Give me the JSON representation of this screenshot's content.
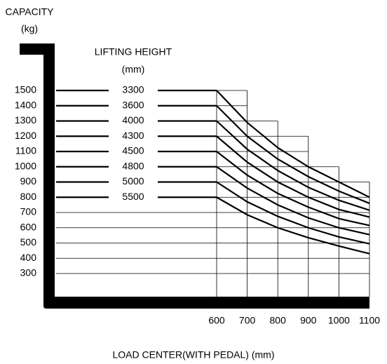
{
  "chart_data": {
    "type": "line",
    "y_title_line1": "CAPACITY",
    "y_title_line2": "(kg)",
    "legend_title_line1": "LIFTING HEIGHT",
    "legend_title_line2": "(mm)",
    "x_label": "LOAD CENTER(WITH PEDAL)  (mm)",
    "x": [
      600,
      700,
      800,
      900,
      1000,
      1100
    ],
    "xlim": [
      600,
      1100
    ],
    "xticks": [
      600,
      700,
      800,
      900,
      1000,
      1100
    ],
    "ylim": [
      300,
      1500
    ],
    "yticks": [
      1500,
      1400,
      1300,
      1200,
      1100,
      1000,
      900,
      800,
      700,
      600,
      500,
      400,
      300
    ],
    "grid": true,
    "series": [
      {
        "name": "3300",
        "color": "#000000",
        "values": [
          1500,
          1290,
          1125,
          1000,
          900,
          800
        ]
      },
      {
        "name": "3600",
        "color": "#000000",
        "values": [
          1400,
          1200,
          1050,
          935,
          840,
          760
        ]
      },
      {
        "name": "4000",
        "color": "#000000",
        "values": [
          1300,
          1115,
          975,
          865,
          780,
          715
        ]
      },
      {
        "name": "4300",
        "color": "#000000",
        "values": [
          1200,
          1030,
          900,
          800,
          720,
          670
        ]
      },
      {
        "name": "4500",
        "color": "#000000",
        "values": [
          1100,
          945,
          825,
          735,
          660,
          615
        ]
      },
      {
        "name": "4800",
        "color": "#000000",
        "values": [
          1000,
          860,
          750,
          665,
          600,
          555
        ]
      },
      {
        "name": "5000",
        "color": "#000000",
        "values": [
          900,
          770,
          675,
          600,
          540,
          495
        ]
      },
      {
        "name": "5500",
        "color": "#000000",
        "values": [
          800,
          685,
          600,
          535,
          480,
          430
        ]
      }
    ]
  }
}
